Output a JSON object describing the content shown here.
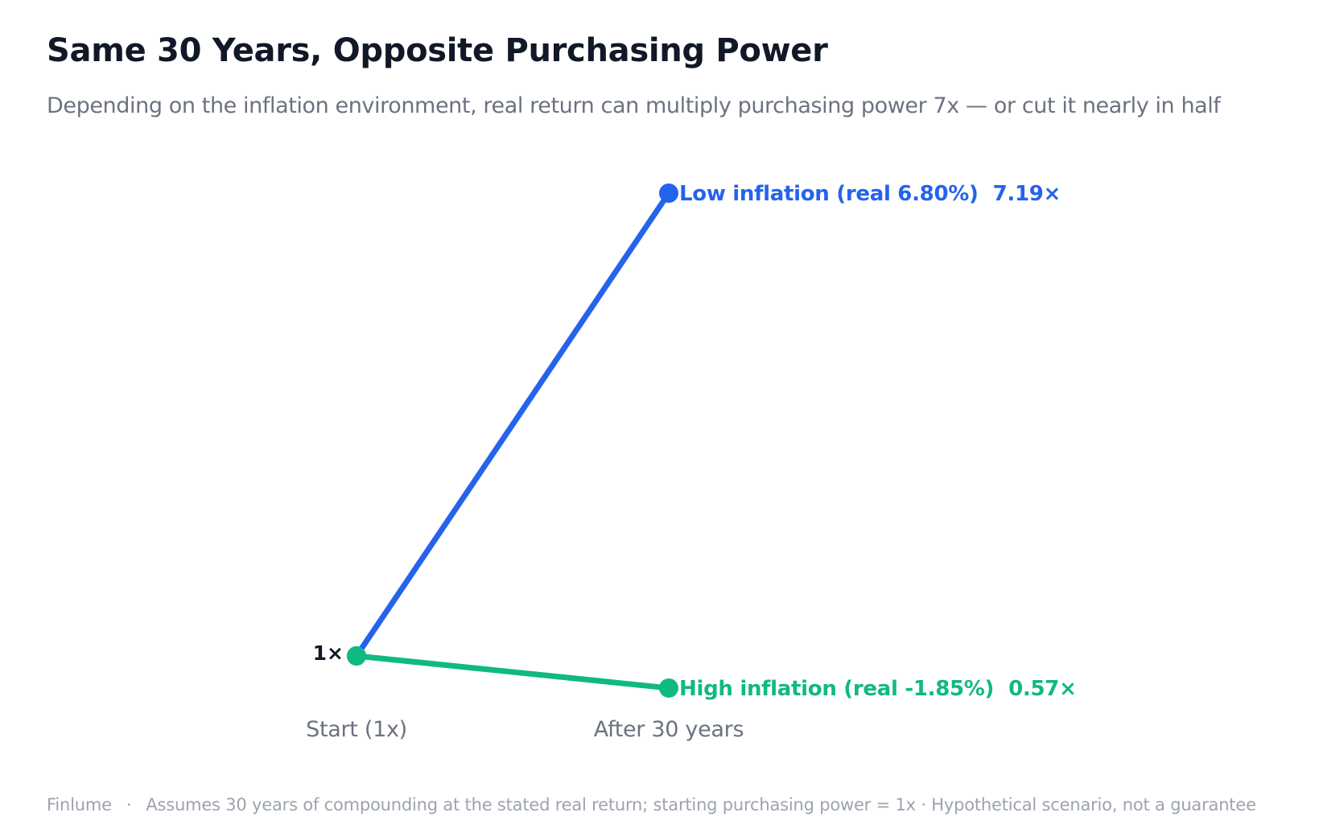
{
  "title": "Same 30 Years, Opposite Purchasing Power",
  "subtitle": "Depending on the inflation environment, real return can multiply purchasing power 7x — or cut it nearly in half",
  "footer": {
    "brand": "Finlume",
    "separator": "·",
    "note": "Assumes 30 years of compounding at the stated real return; starting purchasing power = 1x · Hypothetical scenario, not a guarantee"
  },
  "chart_data": {
    "type": "line",
    "categories": [
      "Start (1x)",
      "After 30 years"
    ],
    "start_label": "1×",
    "series": [
      {
        "name": "Low inflation (real 6.80%)",
        "values": [
          1,
          7.19
        ],
        "end_label": "7.19×",
        "color": "#2563eb"
      },
      {
        "name": "High inflation (real -1.85%)",
        "values": [
          1,
          0.57
        ],
        "end_label": "0.57×",
        "color": "#10b981"
      }
    ],
    "grid": false,
    "legend": "none"
  }
}
